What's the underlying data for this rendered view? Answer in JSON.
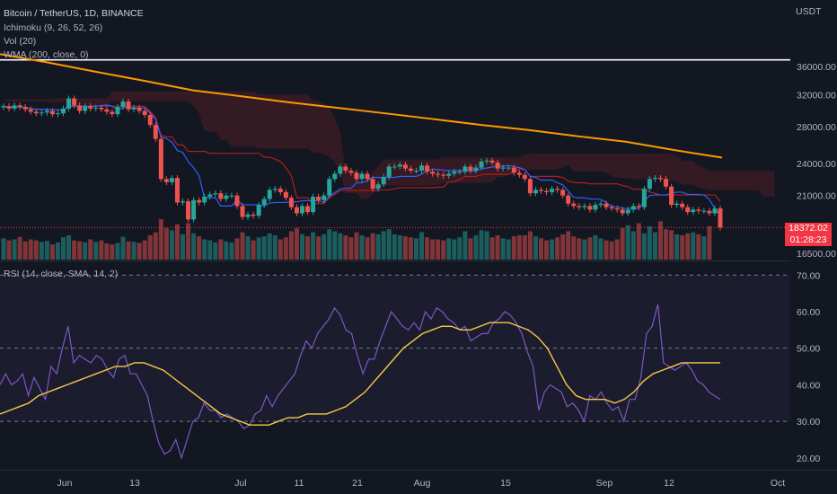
{
  "header": {
    "title": "Bitcoin / TetherUS, 1D, BINANCE",
    "indicators": [
      "Ichimoku (9, 26, 52, 26)",
      "Vol (20)",
      "WMA (200, close, 0)"
    ],
    "rsi_title": "RSI (14, close, SMA, 14, 2)",
    "currency": "USDT",
    "last_price": "18372.02",
    "countdown": "01:28:23"
  },
  "colors": {
    "background": "#131722",
    "up": "#26a69a",
    "down": "#ef5350",
    "wma": "#ff9800",
    "rsi": "#7e57c2",
    "rsi_ma": "#f7c948",
    "tenkan": "#2962ff",
    "kijun": "#b71c1c",
    "price_line": "#f23645"
  },
  "chart_data": [
    {
      "type": "candlestick",
      "title": "Bitcoin / TetherUS, 1D, BINANCE",
      "y_scale": "log",
      "y_ticks": [
        16500,
        21000,
        24000,
        28000,
        32000,
        36000
      ],
      "y_tick_labels": [
        "16500.00",
        "21000.00",
        "24000.00",
        "28000.00",
        "32000.00",
        "36000.00"
      ],
      "x_ticks": [
        "Jun",
        "13",
        "Jul",
        "11",
        "21",
        "Aug",
        "15",
        "Sep",
        "12",
        "Oct"
      ],
      "x_tick_dates": [
        "2022-06-01",
        "2022-06-13",
        "2022-07-01",
        "2022-07-11",
        "2022-07-21",
        "2022-08-01",
        "2022-08-15",
        "2022-09-01",
        "2022-09-12",
        "2022-10-01"
      ],
      "horizontal_line": 37000,
      "series": [
        {
          "name": "BTCUSDT",
          "close": [
            30500,
            30200,
            30600,
            30400,
            30100,
            29800,
            29600,
            29700,
            29900,
            29500,
            29600,
            30200,
            31500,
            30600,
            29900,
            30500,
            30200,
            30300,
            30100,
            29800,
            29500,
            30400,
            31100,
            30100,
            30300,
            29900,
            29400,
            28200,
            26600,
            22500,
            22200,
            22600,
            20400,
            20500,
            19000,
            20600,
            20400,
            20900,
            21100,
            21200,
            20700,
            21000,
            21000,
            20100,
            19200,
            19400,
            19300,
            20200,
            20700,
            21500,
            21600,
            21300,
            20800,
            20000,
            19500,
            20100,
            19600,
            20900,
            20600,
            21000,
            22500,
            23000,
            23700,
            23300,
            23100,
            22500,
            23000,
            22500,
            21600,
            22000,
            22700,
            23700,
            23700,
            23900,
            23500,
            23300,
            23300,
            23800,
            23200,
            23000,
            22900,
            22800,
            23000,
            23200,
            23200,
            23700,
            23300,
            23600,
            24200,
            24300,
            24100,
            23500,
            23600,
            23600,
            23100,
            22900,
            22500,
            21200,
            21500,
            21400,
            21300,
            21600,
            21500,
            21000,
            20300,
            20100,
            20000,
            20100,
            19800,
            20200,
            20300,
            20000,
            19900,
            19800,
            19500,
            19800,
            20100,
            20000,
            21600,
            22500,
            22600,
            22500,
            21800,
            20200,
            20300,
            20000,
            19600,
            19800,
            19700,
            19700,
            19500,
            19900,
            18372
          ],
          "wma": [
            37900,
            36600,
            35200,
            33900,
            32600,
            31800,
            31000,
            30300,
            29600,
            28900,
            28200,
            27600,
            26900,
            26300,
            25400,
            24600
          ]
        },
        {
          "name": "Vol",
          "values": [
            42,
            38,
            40,
            45,
            36,
            40,
            38,
            35,
            37,
            30,
            34,
            44,
            48,
            38,
            36,
            34,
            40,
            35,
            38,
            32,
            30,
            33,
            45,
            36,
            35,
            33,
            38,
            48,
            54,
            80,
            62,
            58,
            70,
            50,
            72,
            52,
            46,
            40,
            38,
            34,
            40,
            36,
            34,
            42,
            54,
            46,
            38,
            44,
            46,
            52,
            48,
            40,
            44,
            56,
            62,
            50,
            46,
            54,
            46,
            50,
            60,
            56,
            52,
            48,
            44,
            54,
            48,
            44,
            52,
            50,
            56,
            60,
            50,
            48,
            46,
            44,
            42,
            54,
            44,
            40,
            40,
            38,
            42,
            40,
            44,
            56,
            42,
            48,
            58,
            56,
            44,
            48,
            42,
            40,
            46,
            48,
            48,
            56,
            46,
            42,
            38,
            40,
            44,
            50,
            56,
            46,
            42,
            40,
            44,
            48,
            42,
            38,
            36,
            40,
            62,
            68,
            56,
            72,
            52,
            66,
            54,
            76,
            60,
            58,
            50,
            48,
            52,
            54,
            50,
            46,
            66
          ]
        }
      ]
    },
    {
      "type": "line",
      "title": "RSI (14, close, SMA, 14, 2)",
      "ylim": [
        17,
        74
      ],
      "y_ticks": [
        20,
        30,
        40,
        50,
        60,
        70
      ],
      "y_tick_labels": [
        "20.00",
        "30.00",
        "40.00",
        "50.00",
        "60.00",
        "70.00"
      ],
      "bands": [
        30,
        50,
        70
      ],
      "series": [
        {
          "name": "RSI",
          "values": [
            40,
            43,
            40,
            41,
            43,
            37,
            42,
            39,
            36,
            45,
            43,
            50,
            56,
            46,
            48,
            47,
            46,
            48,
            47,
            44,
            42,
            47,
            48,
            43,
            43,
            40,
            37,
            30,
            24,
            21,
            22,
            25,
            20,
            25,
            30,
            31,
            35,
            33,
            33,
            31,
            32,
            31,
            30,
            28,
            29,
            32,
            33,
            37,
            34,
            37,
            39,
            41,
            43,
            48,
            52,
            50,
            54,
            56,
            58,
            61,
            59,
            55,
            54,
            48,
            43,
            47,
            47,
            52,
            56,
            60,
            58,
            56,
            55,
            57,
            55,
            60,
            58,
            61,
            60,
            58,
            57,
            55,
            56,
            52,
            53,
            54,
            54,
            57,
            58,
            60,
            59,
            57,
            54,
            49,
            45,
            33,
            38,
            40,
            39,
            38,
            34,
            35,
            33,
            30,
            37,
            36,
            38,
            35,
            33,
            34,
            30,
            36,
            36,
            42,
            54,
            56,
            62,
            46,
            45,
            44,
            45,
            46,
            44,
            41,
            40,
            38,
            37,
            36
          ]
        },
        {
          "name": "RSI MA",
          "values": [
            32,
            33,
            34,
            35,
            37,
            38,
            39,
            40,
            41,
            42,
            43,
            44,
            45,
            45,
            46,
            46,
            45,
            44,
            42,
            40,
            38,
            36,
            34,
            32,
            31,
            30,
            29,
            29,
            29,
            30,
            31,
            31,
            32,
            32,
            32,
            33,
            34,
            36,
            38,
            41,
            44,
            47,
            50,
            52,
            54,
            55,
            56,
            56,
            55,
            55,
            56,
            57,
            57,
            57,
            56,
            55,
            53,
            50,
            45,
            40,
            37,
            36,
            36,
            36,
            35,
            36,
            38,
            41,
            43,
            44,
            45,
            46,
            46,
            46,
            46,
            46
          ]
        }
      ]
    }
  ]
}
